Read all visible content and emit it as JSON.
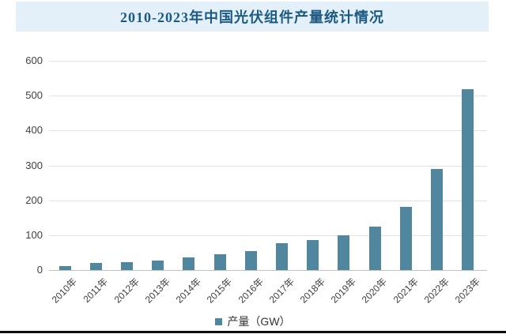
{
  "title": "2010-2023年中国光伏组件产量统计情况",
  "legend": {
    "label": "产量（GW）"
  },
  "colors": {
    "bar": "#51869f",
    "title_text": "#1c5a84",
    "title_bg": "#e3f0f9",
    "grid": "#e3e3e3",
    "baseline": "#c2c2c2",
    "axis_text": "#3f3f3f",
    "legend_text": "#333333",
    "bottom_border": "#0d0d0d"
  },
  "chart_data": {
    "type": "bar",
    "title": "2010-2023年中国光伏组件产量统计情况",
    "categories": [
      "2010年",
      "2011年",
      "2012年",
      "2013年",
      "2014年",
      "2015年",
      "2016年",
      "2017年",
      "2018年",
      "2019年",
      "2020年",
      "2021年",
      "2022年",
      "2023年"
    ],
    "values": [
      10.8,
      21,
      23,
      27.4,
      35.6,
      45.8,
      53.7,
      76,
      85.7,
      98.6,
      124.6,
      182,
      288.7,
      518.1
    ],
    "series_name": "产量（GW）",
    "unit": "GW",
    "xlabel": "",
    "ylabel": "",
    "ylim": [
      0,
      600
    ],
    "yticks": [
      0,
      100,
      200,
      300,
      400,
      500,
      600
    ],
    "grid": true,
    "legend_position": "bottom"
  }
}
